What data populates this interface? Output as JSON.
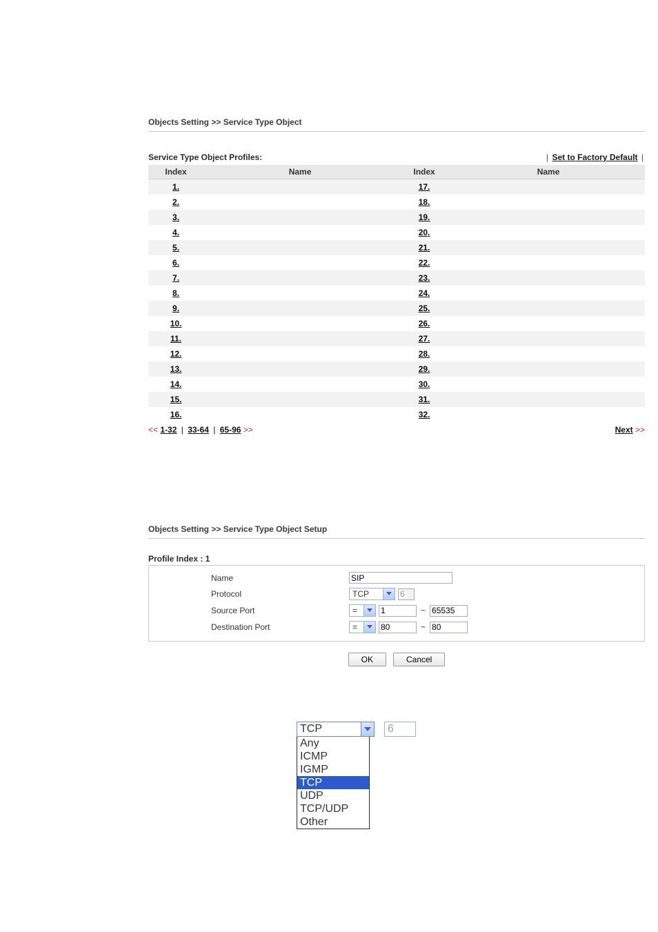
{
  "breadcrumb1": "Objects Setting >> Service Type Object",
  "profiles_title": "Service Type Object Profiles:",
  "reset_label": "Set to Factory Default",
  "headers": {
    "index": "Index",
    "name": "Name"
  },
  "rows_left": [
    "1.",
    "2.",
    "3.",
    "4.",
    "5.",
    "6.",
    "7.",
    "8.",
    "9.",
    "10.",
    "11.",
    "12.",
    "13.",
    "14.",
    "15.",
    "16."
  ],
  "rows_right": [
    "17.",
    "18.",
    "19.",
    "20.",
    "21.",
    "22.",
    "23.",
    "24.",
    "25.",
    "26.",
    "27.",
    "28.",
    "29.",
    "30.",
    "31.",
    "32."
  ],
  "pager": {
    "prev_arrows": "<<",
    "range_1": "1-32",
    "range_2": "33-64",
    "range_3": "65-96",
    "next_arrows": ">>",
    "next_label": "Next"
  },
  "breadcrumb2": "Objects Setting >> Service Type Object Setup",
  "profile_index_label": "Profile Index : 1",
  "form": {
    "name_label": "Name",
    "protocol_label": "Protocol",
    "src_label": "Source Port",
    "dst_label": "Destination Port",
    "name_value": "SIP",
    "protocol_value": "TCP",
    "protocol_number": "6",
    "op_equal": "=",
    "src_from": "1",
    "src_to": "65535",
    "dst_from": "80",
    "dst_to": "80",
    "tilde": "~"
  },
  "buttons": {
    "ok": "OK",
    "cancel": "Cancel"
  },
  "dropdown": {
    "selected": "TCP",
    "side_value": "6",
    "options": [
      "Any",
      "ICMP",
      "IGMP",
      "TCP",
      "UDP",
      "TCP/UDP",
      "Other"
    ],
    "highlight_index": 3
  },
  "colors": {
    "accent_red": "#d02020",
    "link": "#0a0a0a",
    "select_border": "#9cb0d8",
    "select_btn_top": "#dce7fb",
    "select_btn_bot": "#b5cdf6",
    "row_even": "#f2f2f2",
    "highlight": "#2b5bcf"
  }
}
